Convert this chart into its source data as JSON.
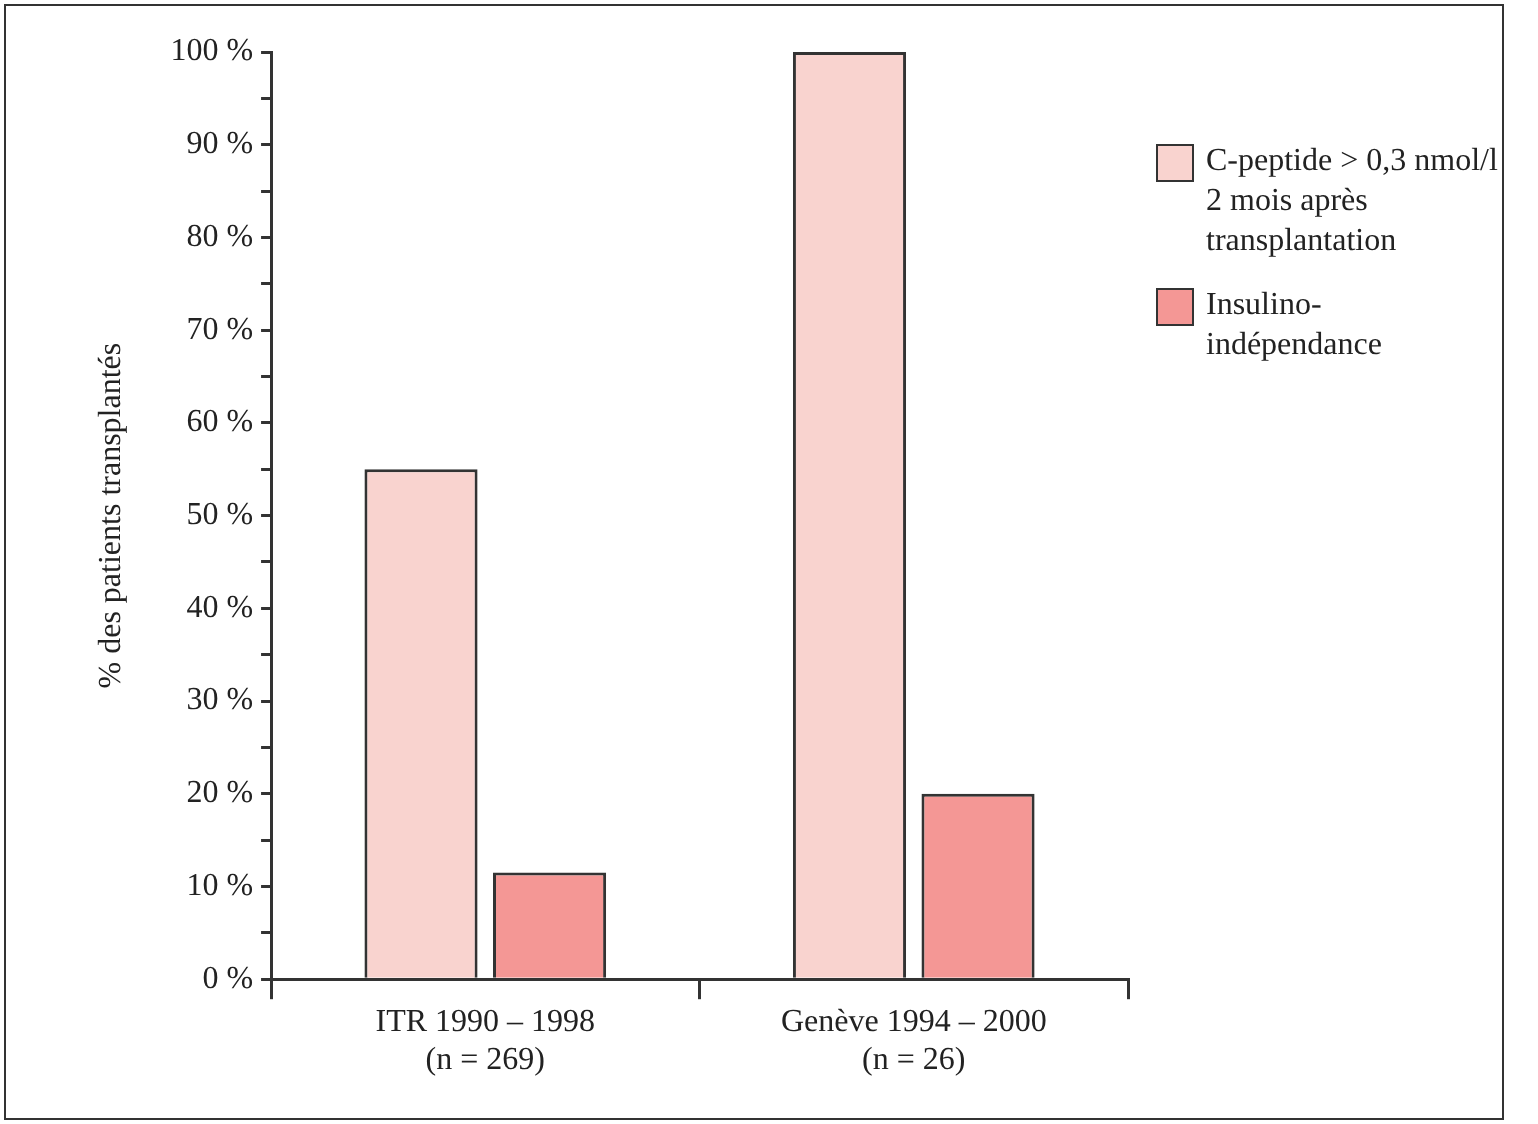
{
  "chart_data": {
    "type": "bar",
    "ylabel": "% des patients transplantés",
    "categories": [
      "ITR 1990 – 1998\n(n = 269)",
      "Genève 1994 – 2000\n(n = 26)"
    ],
    "series": [
      {
        "name": "C-peptide > 0,3 nmol/l\n2 mois après\ntransplantation",
        "color": "#f9d3cf",
        "values": [
          55,
          100
        ]
      },
      {
        "name": "Insulino-\nindépendance",
        "color": "#f49795",
        "values": [
          11.5,
          20
        ]
      }
    ],
    "ylim": [
      0,
      100
    ],
    "yticks": [
      {
        "value": 0,
        "label": "0 %"
      },
      {
        "value": 5,
        "label": null
      },
      {
        "value": 10,
        "label": "10 %"
      },
      {
        "value": 15,
        "label": null
      },
      {
        "value": 20,
        "label": "20 %"
      },
      {
        "value": 25,
        "label": null
      },
      {
        "value": 30,
        "label": "30 %"
      },
      {
        "value": 35,
        "label": null
      },
      {
        "value": 40,
        "label": "40 %"
      },
      {
        "value": 45,
        "label": null
      },
      {
        "value": 50,
        "label": "50 %"
      },
      {
        "value": 55,
        "label": null
      },
      {
        "value": 60,
        "label": "60 %"
      },
      {
        "value": 65,
        "label": null
      },
      {
        "value": 70,
        "label": "70 %"
      },
      {
        "value": 75,
        "label": null
      },
      {
        "value": 80,
        "label": "80 %"
      },
      {
        "value": 85,
        "label": null
      },
      {
        "value": 90,
        "label": "90 %"
      },
      {
        "value": 95,
        "label": null
      },
      {
        "value": 100,
        "label": "100 %"
      }
    ],
    "grid": false,
    "legend": "top right"
  }
}
